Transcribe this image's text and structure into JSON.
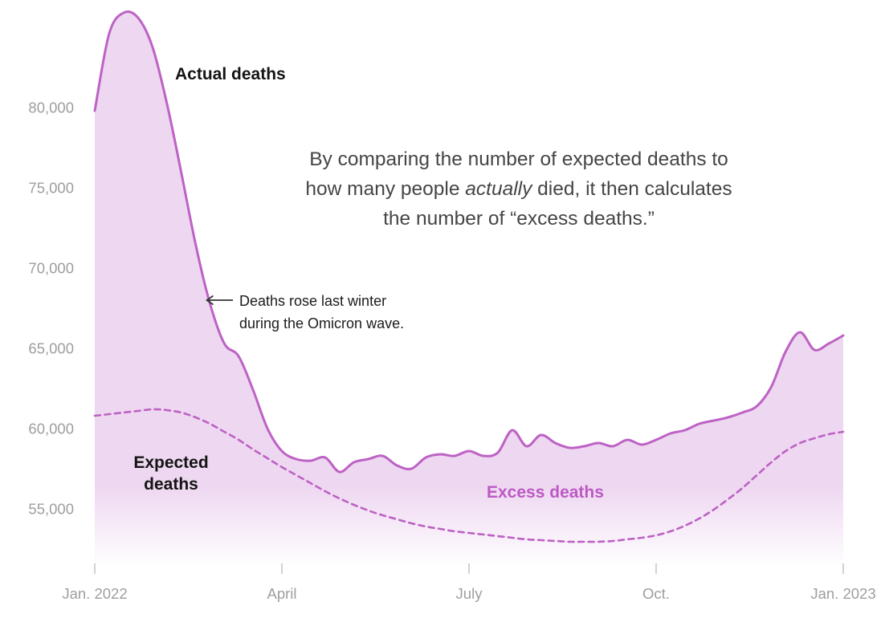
{
  "chart_data": {
    "type": "area",
    "description": "Weekly U.S. deaths in 2022: actual vs. expected, shaded area shows excess deaths",
    "x_unit": "week",
    "grid": false,
    "legend_position": "inline-annotations",
    "x_axis": {
      "tick_weeks": [
        0,
        13,
        26,
        39,
        52
      ],
      "tick_labels": [
        "Jan. 2022",
        "April",
        "July",
        "Oct.",
        "Jan. 2023"
      ]
    },
    "y_axis": {
      "tick_values": [
        55000,
        60000,
        65000,
        70000,
        75000,
        80000
      ],
      "tick_labels": [
        "55,000",
        "60,000",
        "65,000",
        "70,000",
        "75,000",
        "80,000"
      ],
      "range": [
        51500,
        86500
      ]
    },
    "series": [
      {
        "name": "Actual deaths",
        "style": "solid",
        "values": [
          79800,
          84600,
          85900,
          85600,
          83800,
          80300,
          76000,
          71500,
          67800,
          65300,
          64500,
          62400,
          60000,
          58600,
          58100,
          58000,
          58200,
          57300,
          57900,
          58100,
          58300,
          57700,
          57500,
          58200,
          58400,
          58300,
          58600,
          58300,
          58500,
          59900,
          58900,
          59600,
          59100,
          58800,
          58900,
          59100,
          58900,
          59300,
          59000,
          59300,
          59700,
          59900,
          60300,
          60500,
          60700,
          61000,
          61400,
          62600,
          64800,
          66000,
          64900,
          65300,
          65800
        ]
      },
      {
        "name": "Expected deaths",
        "style": "dashed",
        "values": [
          60800,
          60900,
          61000,
          61100,
          61200,
          61150,
          61000,
          60700,
          60300,
          59800,
          59300,
          58700,
          58150,
          57600,
          57100,
          56600,
          56100,
          55650,
          55250,
          54900,
          54600,
          54350,
          54100,
          53900,
          53750,
          53600,
          53500,
          53400,
          53300,
          53200,
          53100,
          53050,
          53000,
          52950,
          52950,
          52950,
          53000,
          53100,
          53200,
          53350,
          53600,
          53950,
          54400,
          54950,
          55600,
          56300,
          57100,
          57900,
          58600,
          59100,
          59400,
          59650,
          59800
        ]
      }
    ]
  },
  "labels": {
    "actual": "Actual deaths",
    "expected": "Expected\ndeaths",
    "excess": "Excess deaths"
  },
  "annotations": {
    "explainer": {
      "line1": "By comparing the number of expected deaths to",
      "line2_pre": "how many people ",
      "line2_italic": "actually",
      "line2_post": " died, it then calculates",
      "line3": "the number of “excess deaths.”"
    },
    "omicron_note": {
      "line1": "Deaths rose last winter",
      "line2": "during the Omicron wave."
    }
  },
  "colors": {
    "line": "#bd62c4",
    "fill": "#eed7f1",
    "excess_label": "#bc59c3",
    "axis_text": "#9e9e9e",
    "tick": "#c2c2c2",
    "arrow": "#333333"
  }
}
